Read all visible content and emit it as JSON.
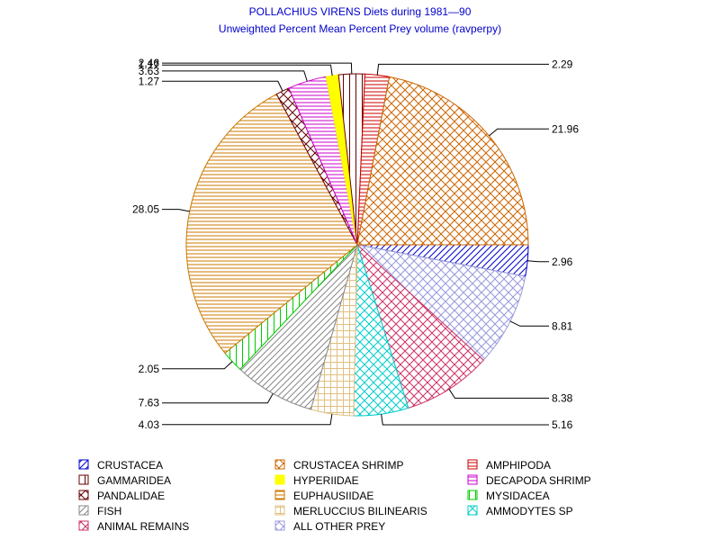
{
  "chart_data": {
    "type": "pie",
    "title": "POLLACHIUS VIRENS Diets during 1981—90",
    "subtitle": "Unweighted Percent Mean Percent Prey  volume (ravperpy)",
    "grid": false,
    "legend_position": "bottom",
    "slices": [
      {
        "name": "CRUSTACEA",
        "value": 2.96,
        "label": "2.96",
        "color": "#0000cc",
        "pattern": "diag-up"
      },
      {
        "name": "ALL OTHER PREY",
        "value": 8.81,
        "label": "8.81",
        "color": "#9999dd",
        "pattern": "crosshatch"
      },
      {
        "name": "ANIMAL REMAINS",
        "value": 8.38,
        "label": "8.38",
        "color": "#cc3366",
        "pattern": "crosshatch"
      },
      {
        "name": "AMMODYTES SP",
        "value": 5.16,
        "label": "5.16",
        "color": "#00cccc",
        "pattern": "crosshatch"
      },
      {
        "name": "MERLUCCIUS BILINEARIS",
        "value": 4.03,
        "label": "4.03",
        "color": "#e0c080",
        "pattern": "grid"
      },
      {
        "name": "FISH",
        "value": 7.63,
        "label": "7.63",
        "color": "#888888",
        "pattern": "diag-up"
      },
      {
        "name": "MYSIDACEA",
        "value": 2.05,
        "label": "2.05",
        "color": "#00cc00",
        "pattern": "vertical"
      },
      {
        "name": "EUPHAUSIIDAE",
        "value": 28.05,
        "label": "28.05",
        "color": "#cc7700",
        "pattern": "horizontal"
      },
      {
        "name": "PANDALIDAE",
        "value": 1.27,
        "label": "1.27",
        "color": "#660000",
        "pattern": "crosshatch"
      },
      {
        "name": "DECAPODA SHRIMP",
        "value": 3.63,
        "label": "3.63",
        "color": "#cc00cc",
        "pattern": "horizontal"
      },
      {
        "name": "HYPERIIDAE",
        "value": 1.17,
        "label": "1.17",
        "color": "#ffff00",
        "pattern": "solid"
      },
      {
        "name": "GAMMARIDEA",
        "value": 2.46,
        "label": "2.46",
        "color": "#660000",
        "pattern": "vertical"
      },
      {
        "name": "AMPHIPODA",
        "value": 2.29,
        "label": "2.29",
        "color": "#cc0000",
        "pattern": "horizontal"
      },
      {
        "name": "CRUSTACEA SHRIMP",
        "value": 21.96,
        "label": "21.96",
        "color": "#cc6600",
        "pattern": "crosshatch"
      }
    ],
    "legend": [
      "CRUSTACEA",
      "CRUSTACEA SHRIMP",
      "AMPHIPODA",
      "GAMMARIDEA",
      "HYPERIIDAE",
      "DECAPODA SHRIMP",
      "PANDALIDAE",
      "EUPHAUSIIDAE",
      "MYSIDACEA",
      "FISH",
      "MERLUCCIUS BILINEARIS",
      "AMMODYTES SP",
      "ANIMAL REMAINS",
      "ALL OTHER PREY"
    ]
  }
}
